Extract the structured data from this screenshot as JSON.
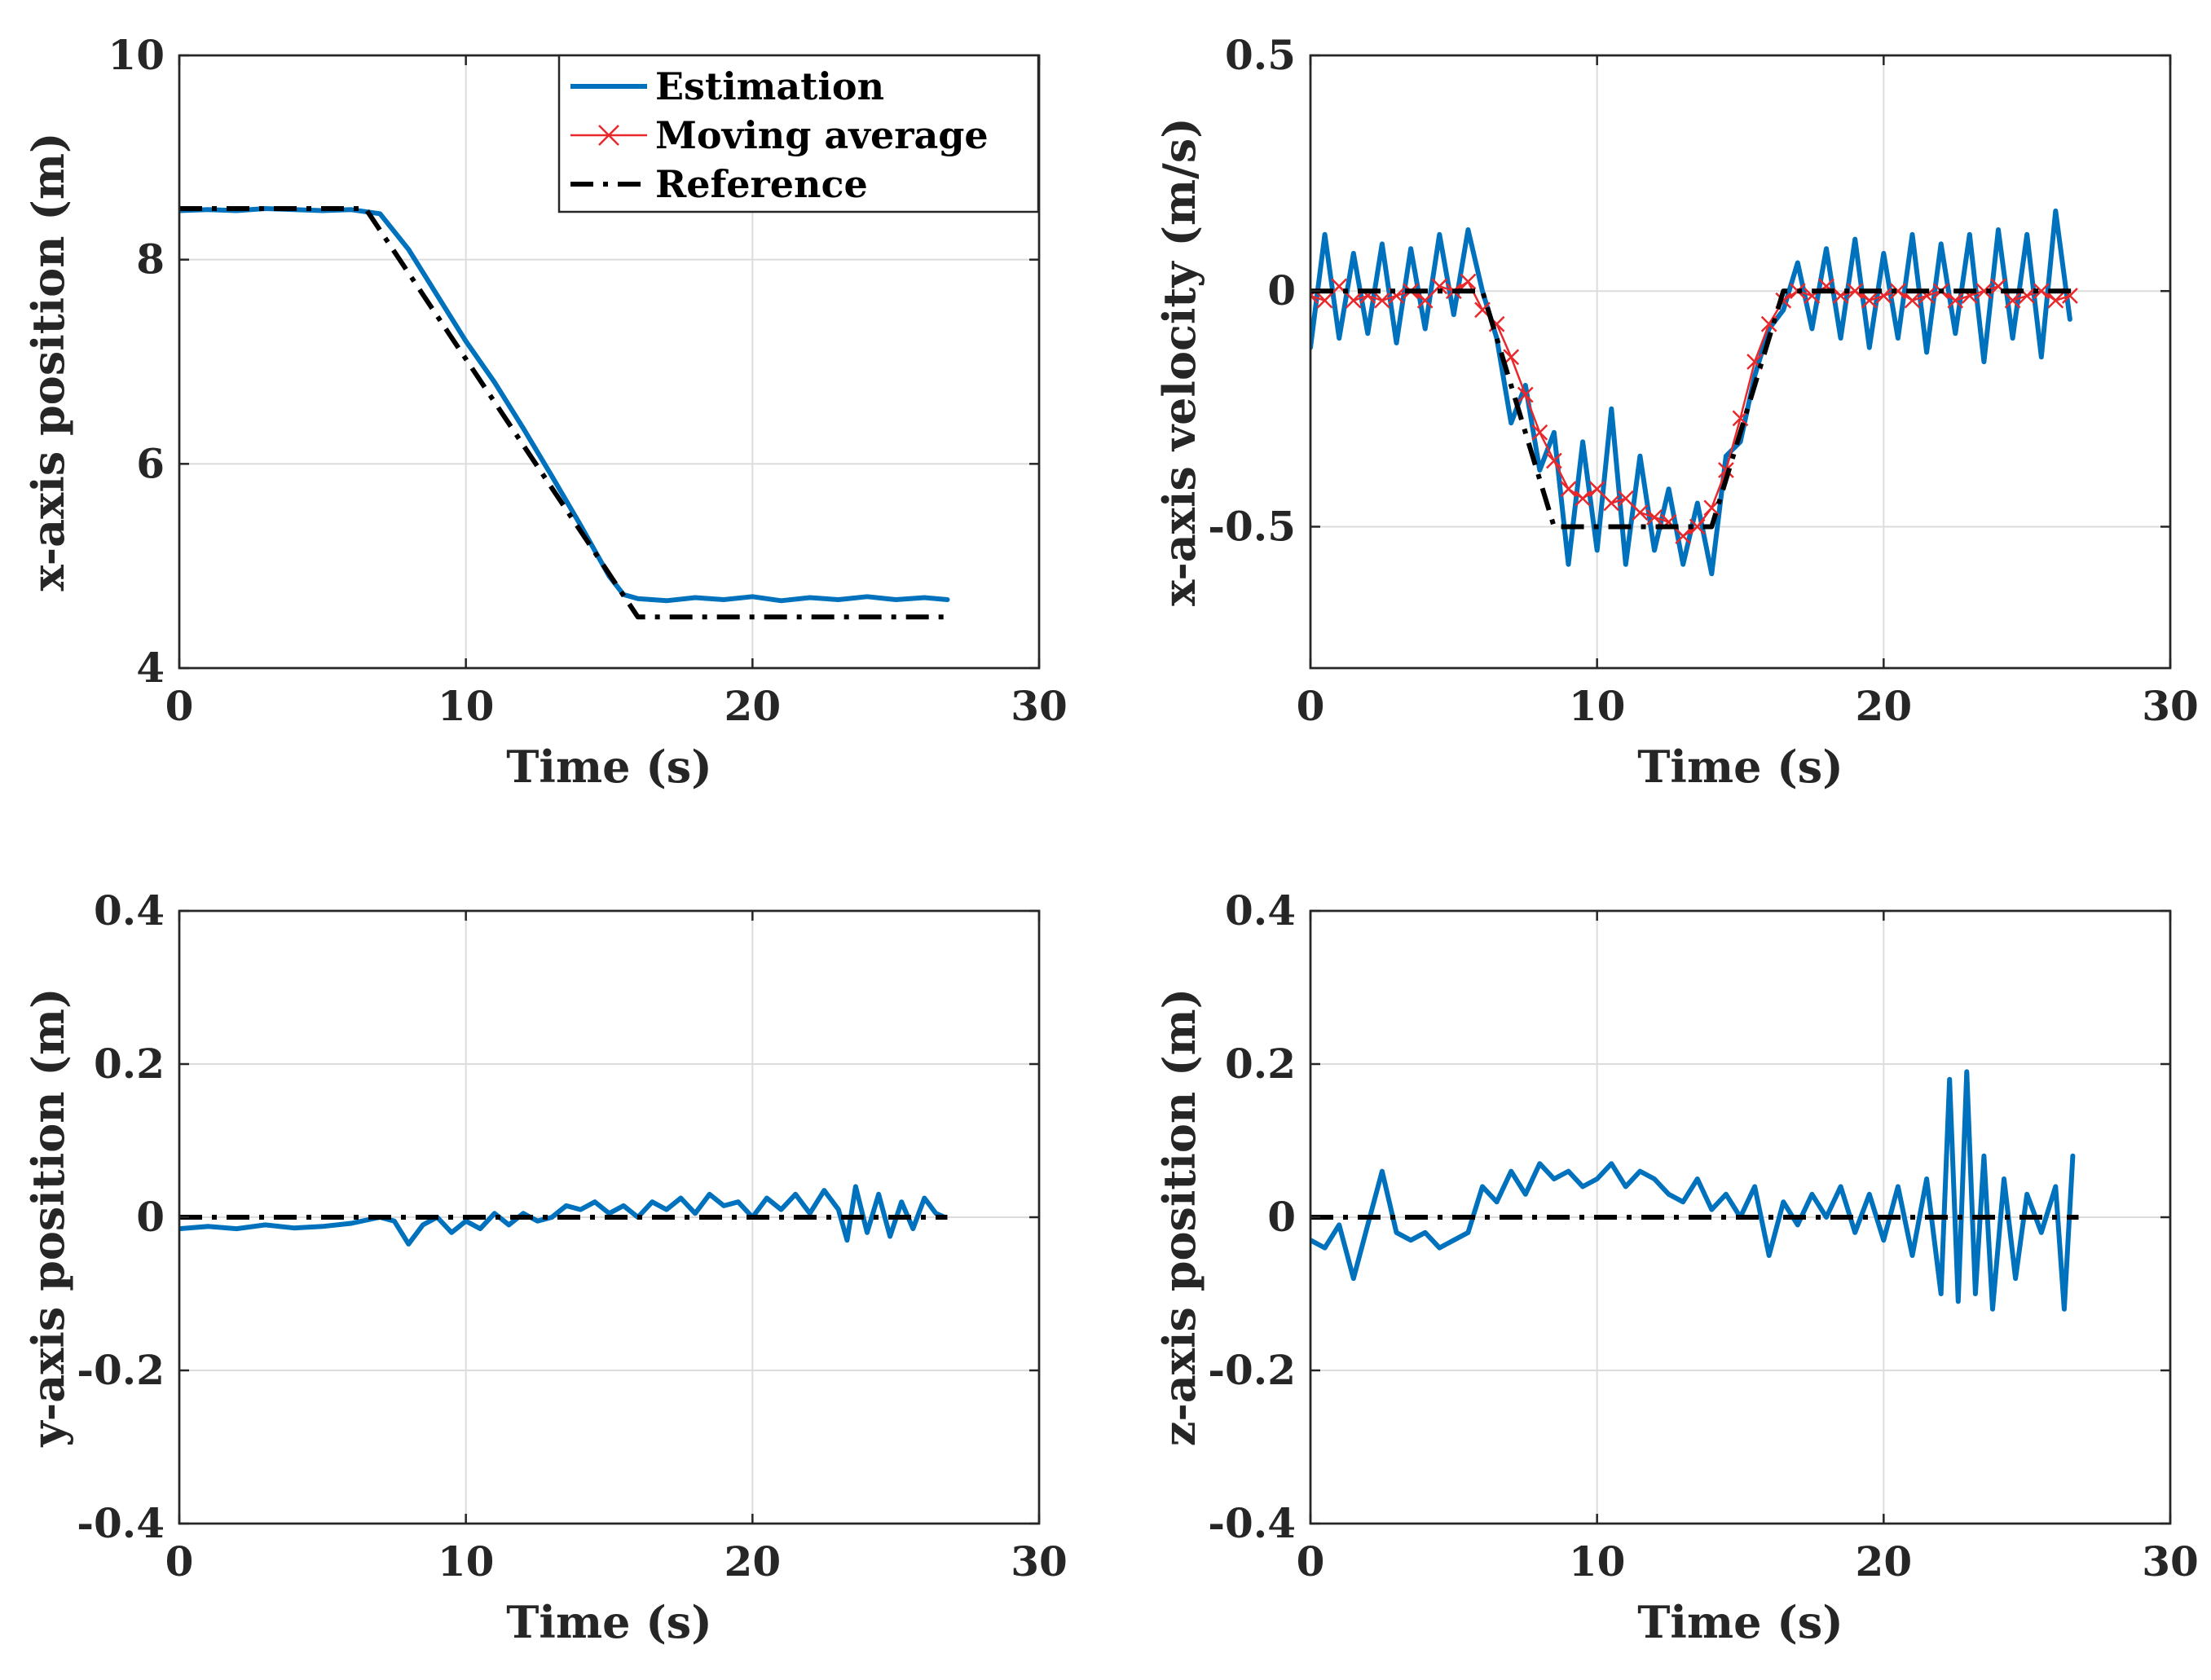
{
  "legend": {
    "entries": [
      {
        "label": "Estimation",
        "color": "#0072BD",
        "style": "solid"
      },
      {
        "label": "Moving average",
        "color": "#E8282B",
        "style": "solid-x-marker"
      },
      {
        "label": "Reference",
        "color": "#000000",
        "style": "dash-dot"
      }
    ]
  },
  "chart_data": [
    {
      "type": "line",
      "xlabel": "Time (s)",
      "ylabel": "x-axis position (m)",
      "xlim": [
        0,
        30
      ],
      "ylim": [
        4,
        10
      ],
      "xticks": [
        0,
        10,
        20,
        30
      ],
      "yticks": [
        4,
        6,
        8,
        10
      ],
      "ytick_labels": [
        "4",
        "6",
        "8",
        "10"
      ],
      "grid": true,
      "legend_position": "top-right",
      "series": [
        {
          "name": "Estimation",
          "color": "#0072BD",
          "style": "solid",
          "x": [
            0,
            1,
            2,
            3,
            4,
            5,
            6,
            7,
            8,
            9,
            10,
            11,
            12,
            13,
            14,
            15,
            15.5,
            16,
            17,
            18,
            19,
            20,
            21,
            22,
            23,
            24,
            25,
            26,
            26.8
          ],
          "y": [
            8.48,
            8.49,
            8.48,
            8.5,
            8.49,
            8.48,
            8.49,
            8.45,
            8.1,
            7.65,
            7.2,
            6.8,
            6.35,
            5.88,
            5.4,
            4.9,
            4.72,
            4.68,
            4.66,
            4.69,
            4.67,
            4.7,
            4.66,
            4.69,
            4.67,
            4.7,
            4.67,
            4.69,
            4.67
          ]
        },
        {
          "name": "Reference",
          "color": "#000000",
          "style": "dash-dot",
          "x": [
            0,
            6.5,
            16,
            26.8
          ],
          "y": [
            8.5,
            8.5,
            4.5,
            4.5
          ]
        }
      ]
    },
    {
      "type": "line",
      "xlabel": "Time (s)",
      "ylabel": "x-axis velocity (m/s)",
      "xlim": [
        0,
        30
      ],
      "ylim": [
        -0.8,
        0.5
      ],
      "xticks": [
        0,
        10,
        20,
        30
      ],
      "yticks": [
        -0.5,
        0,
        0.5
      ],
      "ytick_labels": [
        "-0.5",
        "0",
        "0.5"
      ],
      "grid": true,
      "series": [
        {
          "name": "Estimation",
          "color": "#0072BD",
          "style": "solid",
          "x": [
            0,
            0.5,
            1,
            1.5,
            2,
            2.5,
            3,
            3.5,
            4,
            4.5,
            5,
            5.5,
            6,
            6.5,
            7,
            7.5,
            8,
            8.5,
            9,
            9.5,
            10,
            10.5,
            11,
            11.5,
            12,
            12.5,
            13,
            13.5,
            14,
            14.5,
            15,
            15.5,
            16,
            16.5,
            17,
            17.5,
            18,
            18.5,
            19,
            19.5,
            20,
            20.5,
            21,
            21.5,
            22,
            22.5,
            23,
            23.5,
            24,
            24.5,
            25,
            25.5,
            26,
            26.5
          ],
          "y": [
            -0.12,
            0.12,
            -0.1,
            0.08,
            -0.09,
            0.1,
            -0.11,
            0.09,
            -0.08,
            0.12,
            -0.05,
            0.13,
            0.0,
            -0.1,
            -0.28,
            -0.2,
            -0.38,
            -0.3,
            -0.58,
            -0.32,
            -0.55,
            -0.25,
            -0.58,
            -0.35,
            -0.55,
            -0.42,
            -0.58,
            -0.45,
            -0.6,
            -0.35,
            -0.32,
            -0.18,
            -0.08,
            -0.04,
            0.06,
            -0.08,
            0.09,
            -0.1,
            0.11,
            -0.12,
            0.08,
            -0.1,
            0.12,
            -0.13,
            0.1,
            -0.09,
            0.12,
            -0.15,
            0.13,
            -0.1,
            0.12,
            -0.14,
            0.17,
            -0.06
          ]
        },
        {
          "name": "Moving average",
          "color": "#E8282B",
          "style": "solid-x-marker",
          "x": [
            0,
            0.5,
            1,
            1.5,
            2,
            2.5,
            3,
            3.5,
            4,
            4.5,
            5,
            5.5,
            6,
            6.5,
            7,
            7.5,
            8,
            8.5,
            9,
            9.5,
            10,
            10.5,
            11,
            11.5,
            12,
            12.5,
            13,
            13.5,
            14,
            14.5,
            15,
            15.5,
            16,
            16.5,
            17,
            17.5,
            18,
            18.5,
            19,
            19.5,
            20,
            20.5,
            21,
            21.5,
            22,
            22.5,
            23,
            23.5,
            24,
            24.5,
            25,
            25.5,
            26,
            26.5
          ],
          "y": [
            -0.01,
            -0.02,
            0.01,
            -0.02,
            -0.01,
            -0.02,
            -0.01,
            0.0,
            -0.02,
            0.01,
            0.0,
            0.02,
            -0.04,
            -0.07,
            -0.14,
            -0.22,
            -0.3,
            -0.36,
            -0.42,
            -0.44,
            -0.42,
            -0.45,
            -0.44,
            -0.47,
            -0.48,
            -0.49,
            -0.52,
            -0.5,
            -0.46,
            -0.38,
            -0.27,
            -0.15,
            -0.07,
            -0.02,
            0.0,
            -0.01,
            0.01,
            -0.01,
            0.0,
            -0.02,
            -0.01,
            0.0,
            -0.02,
            -0.01,
            0.0,
            -0.02,
            -0.01,
            0.0,
            0.01,
            -0.02,
            -0.01,
            0.0,
            -0.02,
            -0.01
          ]
        },
        {
          "name": "Reference",
          "color": "#000000",
          "style": "dash-dot",
          "x": [
            0,
            6.0,
            8.5,
            14.0,
            16.5,
            26.8
          ],
          "y": [
            0,
            0,
            -0.5,
            -0.5,
            0,
            0
          ]
        }
      ]
    },
    {
      "type": "line",
      "xlabel": "Time (s)",
      "ylabel": "y-axis position (m)",
      "xlim": [
        0,
        30
      ],
      "ylim": [
        -0.4,
        0.4
      ],
      "xticks": [
        0,
        10,
        20,
        30
      ],
      "yticks": [
        -0.4,
        -0.2,
        0,
        0.2,
        0.4
      ],
      "ytick_labels": [
        "-0.4",
        "-0.2",
        "0",
        "0.2",
        "0.4"
      ],
      "grid": true,
      "series": [
        {
          "name": "Estimation",
          "color": "#0072BD",
          "style": "solid",
          "x": [
            0,
            1,
            2,
            3,
            4,
            5,
            6,
            7,
            7.5,
            8,
            8.5,
            9,
            9.5,
            10,
            10.5,
            11,
            11.5,
            12,
            12.5,
            13,
            13.5,
            14,
            14.5,
            15,
            15.5,
            16,
            16.5,
            17,
            17.5,
            18,
            18.5,
            19,
            19.5,
            20,
            20.5,
            21,
            21.5,
            22,
            22.5,
            23,
            23.3,
            23.6,
            24,
            24.4,
            24.8,
            25.2,
            25.6,
            26,
            26.4,
            26.7
          ],
          "y": [
            -0.015,
            -0.012,
            -0.015,
            -0.01,
            -0.014,
            -0.012,
            -0.008,
            0.0,
            -0.005,
            -0.035,
            -0.01,
            0.0,
            -0.02,
            -0.005,
            -0.015,
            0.005,
            -0.01,
            0.005,
            -0.005,
            0.0,
            0.015,
            0.01,
            0.02,
            0.005,
            0.015,
            0.0,
            0.02,
            0.01,
            0.025,
            0.005,
            0.03,
            0.015,
            0.02,
            0.0,
            0.025,
            0.01,
            0.03,
            0.005,
            0.035,
            0.01,
            -0.03,
            0.04,
            -0.02,
            0.03,
            -0.025,
            0.02,
            -0.015,
            0.025,
            0.005,
            0.0
          ]
        },
        {
          "name": "Reference",
          "color": "#000000",
          "style": "dash-dot",
          "x": [
            0,
            26.8
          ],
          "y": [
            0,
            0
          ]
        }
      ]
    },
    {
      "type": "line",
      "xlabel": "Time (s)",
      "ylabel": "z-axis position (m)",
      "xlim": [
        0,
        30
      ],
      "ylim": [
        -0.4,
        0.4
      ],
      "xticks": [
        0,
        10,
        20,
        30
      ],
      "yticks": [
        -0.4,
        -0.2,
        0,
        0.2,
        0.4
      ],
      "ytick_labels": [
        "-0.4",
        "-0.2",
        "0",
        "0.2",
        "0.4"
      ],
      "grid": true,
      "series": [
        {
          "name": "Estimation",
          "color": "#0072BD",
          "style": "solid",
          "x": [
            0,
            0.5,
            1,
            1.5,
            2,
            2.5,
            3,
            3.5,
            4,
            4.5,
            5,
            5.5,
            6,
            6.5,
            7,
            7.5,
            8,
            8.5,
            9,
            9.5,
            10,
            10.5,
            11,
            11.5,
            12,
            12.5,
            13,
            13.5,
            14,
            14.5,
            15,
            15.5,
            16,
            16.5,
            17,
            17.5,
            18,
            18.5,
            19,
            19.5,
            20,
            20.5,
            21,
            21.5,
            22,
            22.3,
            22.6,
            22.9,
            23.2,
            23.5,
            23.8,
            24.2,
            24.6,
            25,
            25.5,
            26,
            26.3,
            26.6
          ],
          "y": [
            -0.03,
            -0.04,
            -0.01,
            -0.08,
            -0.01,
            0.06,
            -0.02,
            -0.03,
            -0.02,
            -0.04,
            -0.03,
            -0.02,
            0.04,
            0.02,
            0.06,
            0.03,
            0.07,
            0.05,
            0.06,
            0.04,
            0.05,
            0.07,
            0.04,
            0.06,
            0.05,
            0.03,
            0.02,
            0.05,
            0.01,
            0.03,
            0.0,
            0.04,
            -0.05,
            0.02,
            -0.01,
            0.03,
            0.0,
            0.04,
            -0.02,
            0.03,
            -0.03,
            0.04,
            -0.05,
            0.05,
            -0.1,
            0.18,
            -0.11,
            0.19,
            -0.1,
            0.08,
            -0.12,
            0.05,
            -0.08,
            0.03,
            -0.02,
            0.04,
            -0.12,
            0.08
          ]
        },
        {
          "name": "Reference",
          "color": "#000000",
          "style": "dash-dot",
          "x": [
            0,
            26.8
          ],
          "y": [
            0,
            0
          ]
        }
      ]
    }
  ]
}
